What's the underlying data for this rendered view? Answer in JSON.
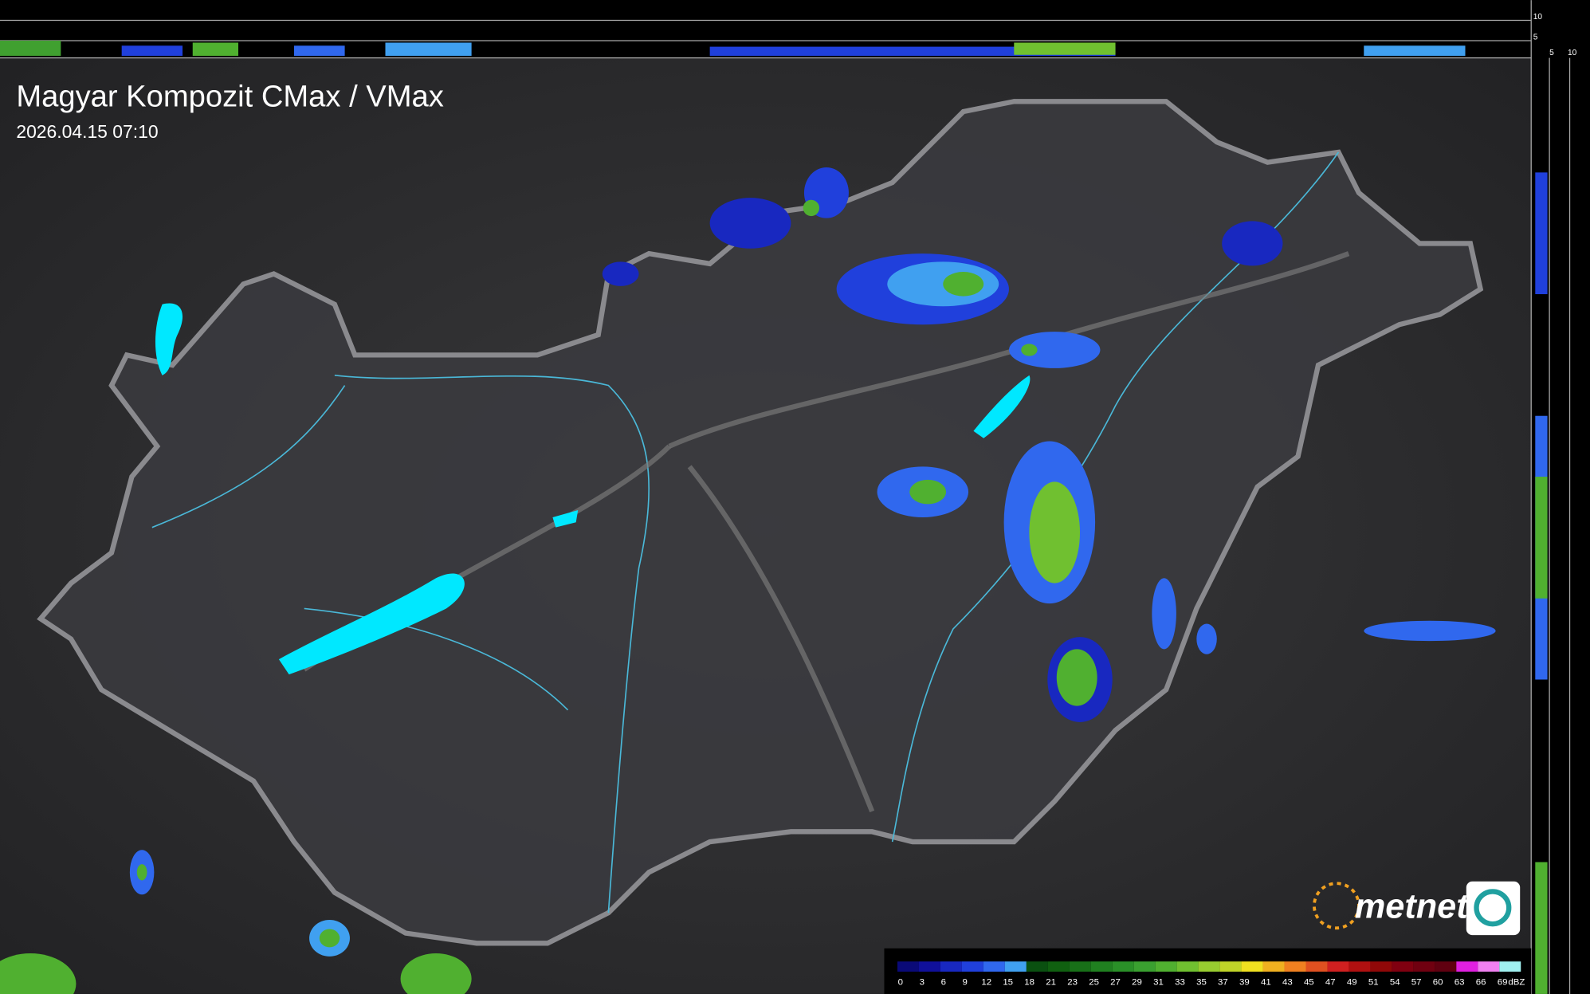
{
  "header": {
    "title": "Magyar Kompozit CMax / VMax",
    "timestamp": "2026.04.15 07:10"
  },
  "profile_axes": {
    "top_labels": [
      "10",
      "5"
    ],
    "side_labels": [
      "5",
      "10"
    ]
  },
  "logo": {
    "text": "metnet"
  },
  "legend": {
    "labels": [
      0,
      3,
      6,
      9,
      12,
      15,
      18,
      21,
      23,
      25,
      27,
      29,
      31,
      33,
      35,
      37,
      39,
      41,
      43,
      45,
      47,
      49,
      51,
      54,
      57,
      60,
      63,
      66,
      69
    ],
    "colors": [
      "#0a0a78",
      "#10109a",
      "#1828c0",
      "#2040dc",
      "#3068ee",
      "#40a0f0",
      "#0a5010",
      "#106010",
      "#187018",
      "#208020",
      "#2a9028",
      "#3aa030",
      "#50b030",
      "#70c030",
      "#98cc30",
      "#c0d428",
      "#f0e020",
      "#f0b020",
      "#f08020",
      "#e05020",
      "#d02020",
      "#b01010",
      "#900808",
      "#800010",
      "#700010",
      "#600010",
      "#e020e0",
      "#f080f0",
      "#a0f0f0"
    ],
    "unit": "dBZ"
  }
}
